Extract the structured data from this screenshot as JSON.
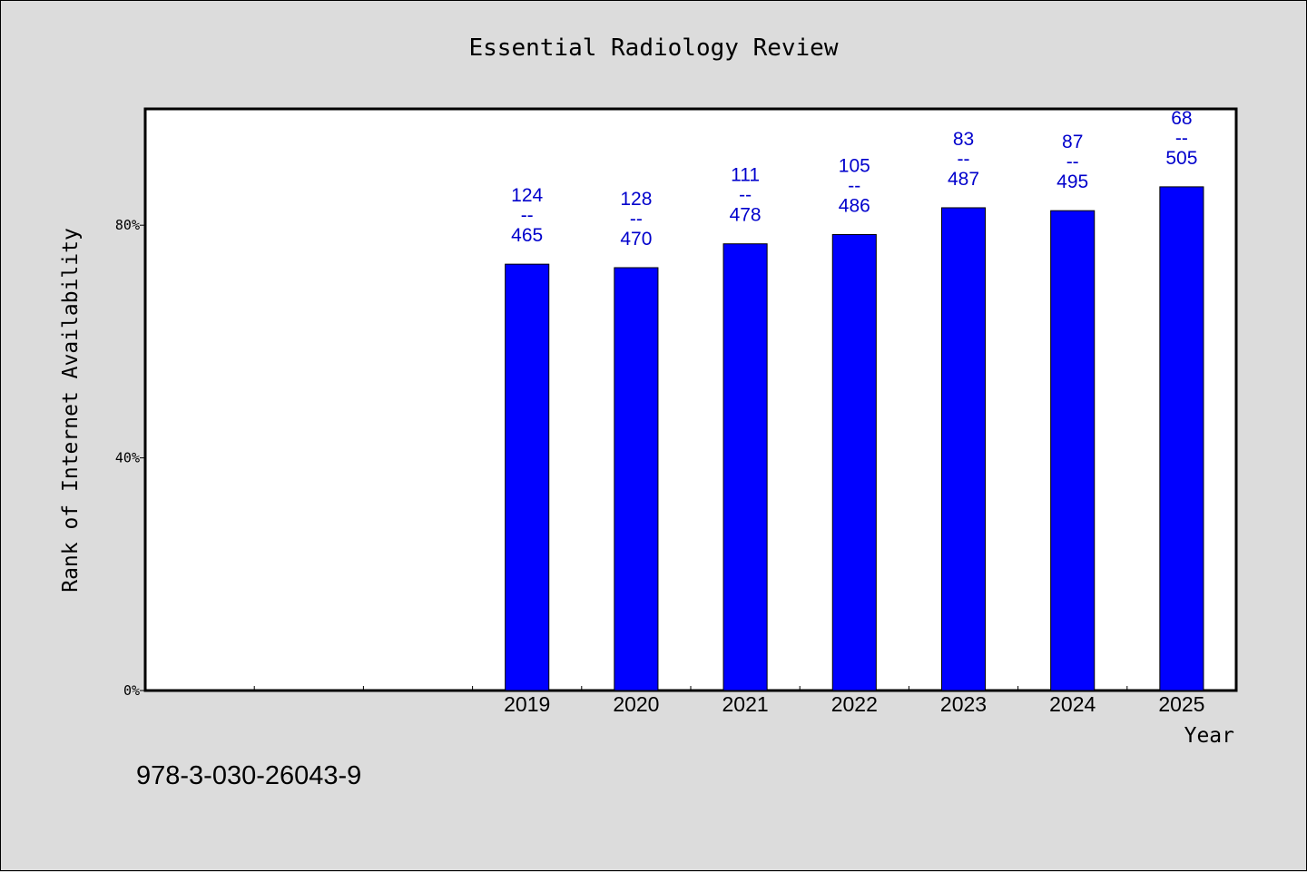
{
  "chart_data": {
    "type": "bar",
    "title": "Essential Radiology Review",
    "xlabel": "Year",
    "ylabel": "Rank of Internet Availability",
    "categories": [
      "",
      "",
      "",
      "2019",
      "2020",
      "2021",
      "2022",
      "2023",
      "2024",
      "2025"
    ],
    "values": [
      null,
      null,
      null,
      73.3,
      72.7,
      76.8,
      78.4,
      83.0,
      82.5,
      86.6
    ],
    "bar_labels": [
      null,
      null,
      null,
      {
        "top": "124",
        "sep": "--",
        "bottom": "465"
      },
      {
        "top": "128",
        "sep": "--",
        "bottom": "470"
      },
      {
        "top": "111",
        "sep": "--",
        "bottom": "478"
      },
      {
        "top": "105",
        "sep": "--",
        "bottom": "486"
      },
      {
        "top": "83",
        "sep": "--",
        "bottom": "487"
      },
      {
        "top": "87",
        "sep": "--",
        "bottom": "495"
      },
      {
        "top": "68",
        "sep": "--",
        "bottom": "505"
      }
    ],
    "ylim": [
      0,
      100
    ],
    "yticks": [
      0,
      40,
      80
    ],
    "ytick_labels": [
      "0%",
      "40%",
      "80%"
    ],
    "grid": false,
    "legend": "none",
    "colors": {
      "bar": "#0000ff",
      "label": "#0000cc",
      "plot_bg": "#ffffff",
      "page_bg": "#dcdcdc"
    }
  },
  "footer": {
    "isbn": "978-3-030-26043-9"
  }
}
